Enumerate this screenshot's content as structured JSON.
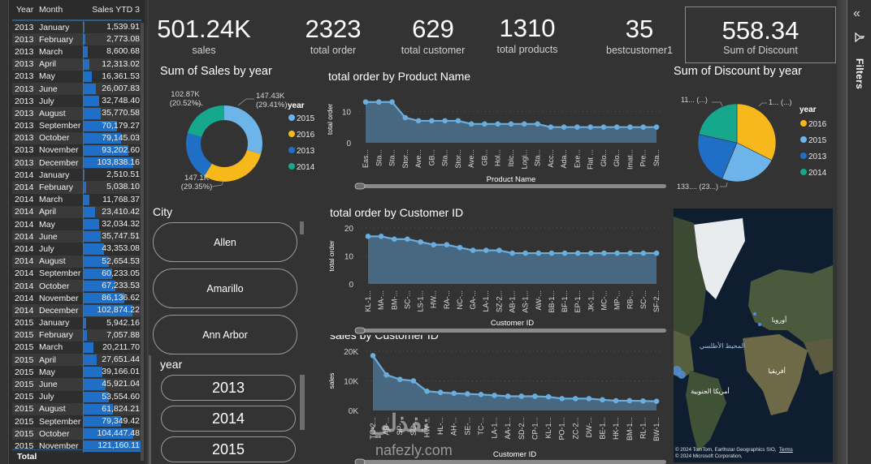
{
  "table": {
    "headers": [
      "Year",
      "Month",
      "Sales YTD 3"
    ],
    "max_value": 121160.11,
    "rows": [
      {
        "year": "2013",
        "month": "January",
        "value": "1,539.91",
        "num": 1539.91
      },
      {
        "year": "2013",
        "month": "February",
        "value": "2,773.08",
        "num": 2773.08
      },
      {
        "year": "2013",
        "month": "March",
        "value": "8,600.68",
        "num": 8600.68
      },
      {
        "year": "2013",
        "month": "April",
        "value": "12,313.02",
        "num": 12313.02
      },
      {
        "year": "2013",
        "month": "May",
        "value": "16,361.53",
        "num": 16361.53
      },
      {
        "year": "2013",
        "month": "June",
        "value": "26,007.83",
        "num": 26007.83
      },
      {
        "year": "2013",
        "month": "July",
        "value": "32,748.40",
        "num": 32748.4
      },
      {
        "year": "2013",
        "month": "August",
        "value": "35,770.58",
        "num": 35770.58
      },
      {
        "year": "2013",
        "month": "September",
        "value": "70,179.27",
        "num": 70179.27
      },
      {
        "year": "2013",
        "month": "October",
        "value": "79,145.03",
        "num": 79145.03
      },
      {
        "year": "2013",
        "month": "November",
        "value": "93,202.60",
        "num": 93202.6
      },
      {
        "year": "2013",
        "month": "December",
        "value": "103,838.16",
        "num": 103838.16
      },
      {
        "year": "2014",
        "month": "January",
        "value": "2,510.51",
        "num": 2510.51
      },
      {
        "year": "2014",
        "month": "February",
        "value": "5,038.10",
        "num": 5038.1
      },
      {
        "year": "2014",
        "month": "March",
        "value": "11,768.37",
        "num": 11768.37
      },
      {
        "year": "2014",
        "month": "April",
        "value": "23,410.42",
        "num": 23410.42
      },
      {
        "year": "2014",
        "month": "May",
        "value": "32,034.32",
        "num": 32034.32
      },
      {
        "year": "2014",
        "month": "June",
        "value": "35,747.51",
        "num": 35747.51
      },
      {
        "year": "2014",
        "month": "July",
        "value": "43,353.08",
        "num": 43353.08
      },
      {
        "year": "2014",
        "month": "August",
        "value": "52,654.53",
        "num": 52654.53
      },
      {
        "year": "2014",
        "month": "September",
        "value": "60,233.05",
        "num": 60233.05
      },
      {
        "year": "2014",
        "month": "October",
        "value": "67,233.53",
        "num": 67233.53
      },
      {
        "year": "2014",
        "month": "November",
        "value": "86,136.62",
        "num": 86136.62
      },
      {
        "year": "2014",
        "month": "December",
        "value": "102,874.22",
        "num": 102874.22
      },
      {
        "year": "2015",
        "month": "January",
        "value": "5,942.16",
        "num": 5942.16
      },
      {
        "year": "2015",
        "month": "February",
        "value": "7,057.88",
        "num": 7057.88
      },
      {
        "year": "2015",
        "month": "March",
        "value": "20,211.70",
        "num": 20211.7
      },
      {
        "year": "2015",
        "month": "April",
        "value": "27,651.44",
        "num": 27651.44
      },
      {
        "year": "2015",
        "month": "May",
        "value": "39,166.01",
        "num": 39166.01
      },
      {
        "year": "2015",
        "month": "June",
        "value": "45,921.04",
        "num": 45921.04
      },
      {
        "year": "2015",
        "month": "July",
        "value": "53,554.60",
        "num": 53554.6
      },
      {
        "year": "2015",
        "month": "August",
        "value": "61,824.21",
        "num": 61824.21
      },
      {
        "year": "2015",
        "month": "September",
        "value": "79,349.42",
        "num": 79349.42
      },
      {
        "year": "2015",
        "month": "October",
        "value": "104,447.48",
        "num": 104447.48
      },
      {
        "year": "2015",
        "month": "November",
        "value": "121,160.11",
        "num": 121160.11
      }
    ],
    "total_label": "Total"
  },
  "kpis": [
    {
      "value": "501.24K",
      "label": "sales"
    },
    {
      "value": "2323",
      "label": "total order"
    },
    {
      "value": "629",
      "label": "total customer"
    },
    {
      "value": "1310",
      "label": "total products"
    },
    {
      "value": "35",
      "label": "bestcustomer1"
    },
    {
      "value": "558.34",
      "label": "Sum of Discount"
    }
  ],
  "colors": {
    "y2015": "#6cb4ea",
    "y2016": "#f6b81a",
    "y2013": "#1f6fc6",
    "y2014": "#16a88c",
    "line": "#6aaee0",
    "area": "#4a6a86"
  },
  "slicers": {
    "city": {
      "title": "City",
      "items": [
        "Allen",
        "Amarillo",
        "Ann Arbor"
      ]
    },
    "year": {
      "title": "year",
      "items": [
        "2013",
        "2014",
        "2015"
      ]
    }
  },
  "filters_pane": {
    "label": "Filters",
    "collapse_icon": "«",
    "filter_icon": "funnel"
  },
  "map": {
    "labels": [
      "المحيط الأطلسي",
      "أوروبا",
      "أفريقيا",
      "أمريكا الجنوبية"
    ],
    "credit_line1": "© 2024 TomTom, Earthstar Geographics SIO,",
    "terms": "Terms",
    "credit_line2": "© 2024 Microsoft Corporation,"
  },
  "watermark": {
    "text1": "نفذلي",
    "text2": "nafezly.com"
  },
  "chart_data": [
    {
      "id": "sales_by_year",
      "type": "pie",
      "variant": "donut",
      "title": "Sum of Sales by year",
      "legend_title": "year",
      "legend_position": "right",
      "categories": [
        "2015",
        "2016",
        "2013",
        "2014"
      ],
      "values": [
        147.43,
        147.1,
        103.84,
        102.87
      ],
      "unit": "K",
      "data_labels": [
        {
          "category": "2015",
          "text1": "147.43K",
          "text2": "(29.41%)"
        },
        {
          "category": "2016",
          "text1": "147.1K",
          "text2": "(29.35%)"
        },
        {
          "category": "2014",
          "text1": "102.87K",
          "text2": "(20.52%)"
        }
      ]
    },
    {
      "id": "order_by_product",
      "type": "area",
      "title": "total order by Product Name",
      "xlabel": "Product Name",
      "ylabel": "total order",
      "ylim": [
        0,
        15
      ],
      "yticks": [
        0,
        10
      ],
      "categories": [
        "Eas...",
        "Sta...",
        "Sta...",
        "Stor...",
        "Ave...",
        "GB...",
        "Sta...",
        "Stor...",
        "Ave...",
        "GB...",
        "Hol...",
        "Iblc...",
        "Logi...",
        "Sta...",
        "Acc...",
        "Ada...",
        "Exe...",
        "Flat ...",
        "Glo...",
        "Glo...",
        "Imat...",
        "Pre...",
        "Sta..."
      ],
      "values": [
        13,
        13,
        13,
        8,
        7,
        7,
        7,
        7,
        6,
        6,
        6,
        6,
        6,
        6,
        5,
        5,
        5,
        5,
        5,
        5,
        5,
        5,
        5
      ]
    },
    {
      "id": "order_by_customer",
      "type": "area",
      "title": "total order by Customer ID",
      "xlabel": "Customer ID",
      "ylabel": "total order",
      "ylim": [
        0,
        20
      ],
      "yticks": [
        0,
        10,
        20
      ],
      "categories": [
        "KL-1...",
        "MA-...",
        "BM-...",
        "SC-...",
        "LS-1...",
        "HW...",
        "RA-...",
        "NC-...",
        "GA-...",
        "LA-1...",
        "SZ-2...",
        "AB-1...",
        "AS-1...",
        "AW-...",
        "BB-1...",
        "BF-1...",
        "EP-1...",
        "JK-1...",
        "MC-...",
        "MP-...",
        "RB-...",
        "SC-...",
        "SF-2..."
      ],
      "values": [
        17,
        17,
        16,
        16,
        15,
        14,
        14,
        13,
        12,
        12,
        12,
        11,
        11,
        11,
        11,
        11,
        11,
        11,
        11,
        11,
        11,
        11,
        11
      ]
    },
    {
      "id": "sales_by_customer",
      "type": "area",
      "title": "sales by Customer ID",
      "xlabel": "Customer ID",
      "ylabel": "sales",
      "ylim": [
        0,
        20000
      ],
      "yticks": [
        0,
        10000,
        20000
      ],
      "ytick_labels": [
        "0K",
        "10K",
        "20K"
      ],
      "categories": [
        "TC-2...",
        "AB-...",
        "SP-...",
        "SC-...",
        "HW-...",
        "HL-...",
        "AH-...",
        "SE-...",
        "TC-...",
        "LA-1...",
        "AA-1...",
        "SD-2...",
        "CP-1...",
        "KL-1...",
        "PO-1...",
        "ZC-2...",
        "DW-...",
        "BE-1...",
        "HK-1...",
        "BM-1...",
        "RL-1...",
        "BW-1..."
      ],
      "values": [
        18500,
        12000,
        10500,
        10000,
        6500,
        6100,
        5800,
        5600,
        5400,
        5100,
        4800,
        4800,
        4800,
        4600,
        4000,
        4000,
        4000,
        3600,
        3300,
        3300,
        3200,
        3100
      ]
    },
    {
      "id": "discount_by_year",
      "type": "pie",
      "title": "Sum of Discount by year",
      "legend_title": "year",
      "legend_position": "right",
      "categories": [
        "2016",
        "2015",
        "2013",
        "2014"
      ],
      "values": [
        181,
        133,
        124,
        120
      ],
      "data_labels": [
        {
          "category": "2016",
          "text": "1... (...)"
        },
        {
          "category": "2015",
          "text": "133.... (23...)"
        },
        {
          "category": "2014",
          "text": "11... (...)"
        }
      ]
    }
  ]
}
